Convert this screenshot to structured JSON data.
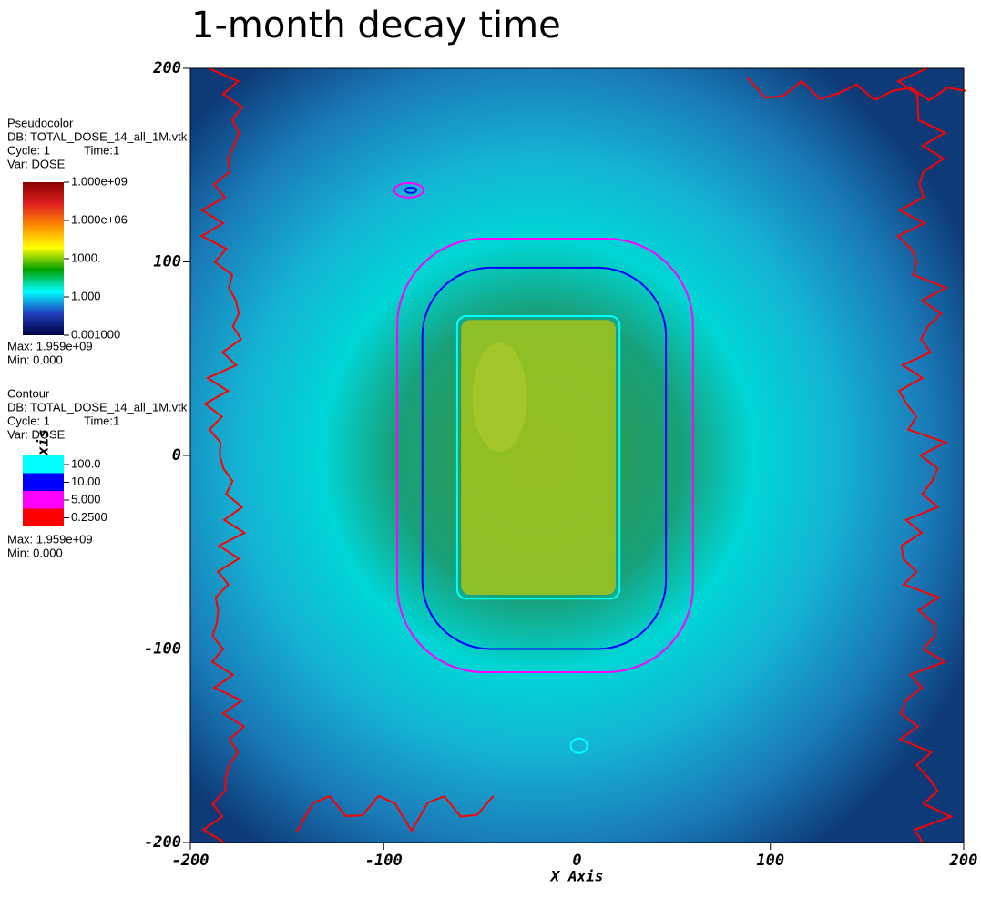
{
  "chart_data": {
    "type": "pseudocolor",
    "title": "1-month decay time",
    "x_label": "X Axis",
    "y_label": "Z-Axis",
    "xlim": [
      -200,
      200
    ],
    "ylim": [
      -200,
      200
    ],
    "xticks": [
      -200,
      -100,
      0,
      100,
      200
    ],
    "yticks": [
      -200,
      -100,
      0,
      100,
      200
    ],
    "pseudocolor": {
      "name": "Pseudocolor",
      "db": "DB: TOTAL_DOSE_14_all_1M.vtk",
      "cycle": "Cycle: 1",
      "time": "Time:1",
      "var": "Var: DOSE",
      "log_scale": true,
      "colors": [
        "#8b0000",
        "#e02020",
        "#ff8c00",
        "#ffff00",
        "#00a000",
        "#00ffff",
        "#2040c0",
        "#000040"
      ],
      "ticks": [
        {
          "value": 1000000000,
          "label": "1.000e+09"
        },
        {
          "value": 1000000,
          "label": "1.000e+06"
        },
        {
          "value": 1000,
          "label": "1000."
        },
        {
          "value": 1,
          "label": "1.000"
        },
        {
          "value": 0.001,
          "label": "0.001000"
        }
      ],
      "max": "Max:  1.959e+09",
      "min": "Min:  0.000"
    },
    "contour": {
      "name": "Contour",
      "db": "DB: TOTAL_DOSE_14_all_1M.vtk",
      "cycle": "Cycle: 1",
      "time": "Time:1",
      "var": "Var: DOSE",
      "levels": [
        {
          "value": 100,
          "label": "100.0",
          "color": "#00ffff"
        },
        {
          "value": 10,
          "label": "10.00",
          "color": "#0000ff"
        },
        {
          "value": 5,
          "label": "5.000",
          "color": "#ff00ff"
        },
        {
          "value": 0.25,
          "label": "0.2500",
          "color": "#ff0000"
        }
      ],
      "max": "Max:  1.959e+09",
      "min": "Min:  0.000"
    }
  }
}
